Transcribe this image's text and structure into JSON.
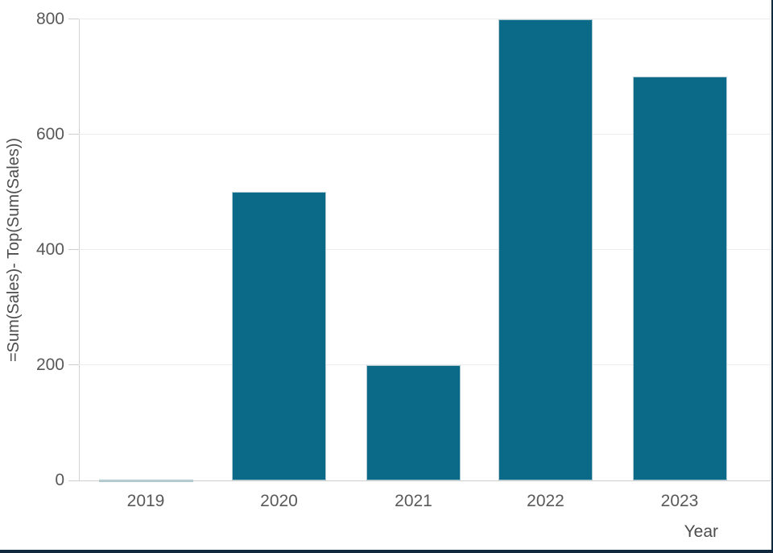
{
  "app": {
    "description": "Bar chart visualization",
    "colors": {
      "bar_fill": "#0a6a87",
      "bar_border": "#aecbd4",
      "zero_bar": "#a3c6d1",
      "gridline": "#ececec",
      "axis_line": "#cfcfcf",
      "tick_text": "#595959",
      "title_text": "#4d4d4d",
      "screenshot_edge": "#10293e",
      "background": "#ffffff"
    }
  },
  "chart_data": {
    "type": "bar",
    "title": "",
    "categories": [
      "2019",
      "2020",
      "2021",
      "2022",
      "2023"
    ],
    "values": [
      0,
      500,
      200,
      800,
      700
    ],
    "series": [
      {
        "name": "=Sum(Sales)- Top(Sum(Sales))",
        "values": [
          0,
          500,
          200,
          800,
          700
        ]
      }
    ],
    "xlabel": "Year",
    "ylabel": "=Sum(Sales)- Top(Sum(Sales))",
    "ylim": [
      0,
      833
    ],
    "yticks": [
      0,
      200,
      400,
      600,
      800
    ],
    "grid": true,
    "legend": "none",
    "bar_color": "#0a6a87"
  }
}
